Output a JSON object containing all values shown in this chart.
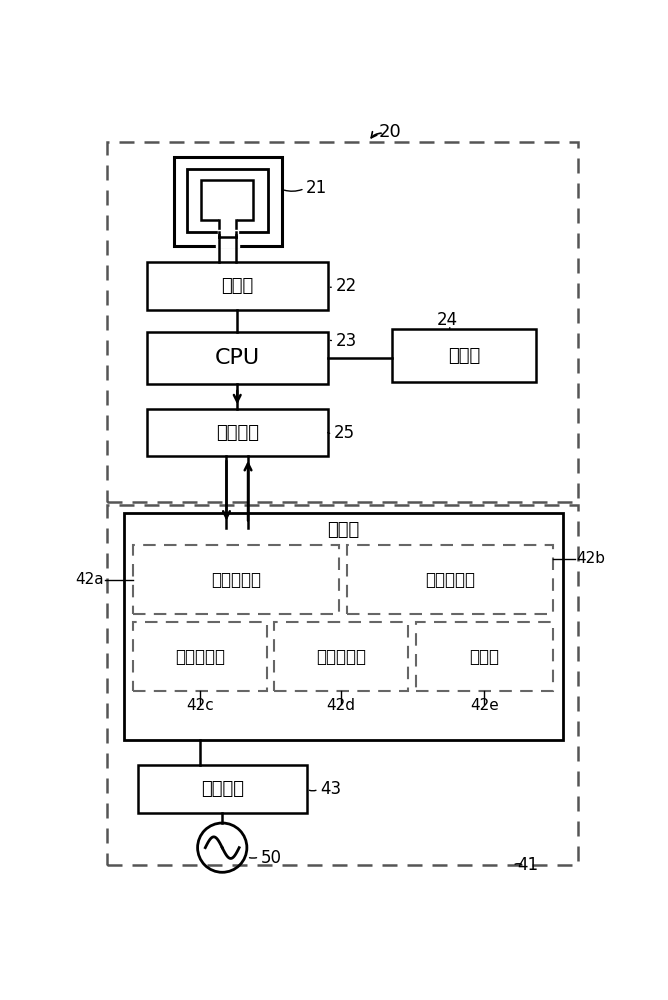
{
  "bg_color": "#ffffff",
  "line_color": "#000000",
  "dashed_color": "#666666",
  "label_20": "20",
  "label_21": "21",
  "label_22": "22",
  "label_23": "23",
  "label_24": "24",
  "label_25": "25",
  "label_41": "41",
  "label_42a": "42a",
  "label_42b": "42b",
  "label_42c": "42c",
  "label_42d": "42d",
  "label_42e": "42e",
  "label_43": "43",
  "label_50": "50",
  "text_shoudianbu": "收发部",
  "text_cpu": "CPU",
  "text_cunchuyiqi": "存储器",
  "text_tongxin": "通信电路",
  "text_kongzhiqi": "控制器",
  "text_di1": "第一控制部",
  "text_di2": "第二控制部",
  "text_di3": "第三控制部",
  "text_di4": "第四控制部",
  "text_cunchuyiqi2": "存储器",
  "text_dianyuan": "电源电路"
}
